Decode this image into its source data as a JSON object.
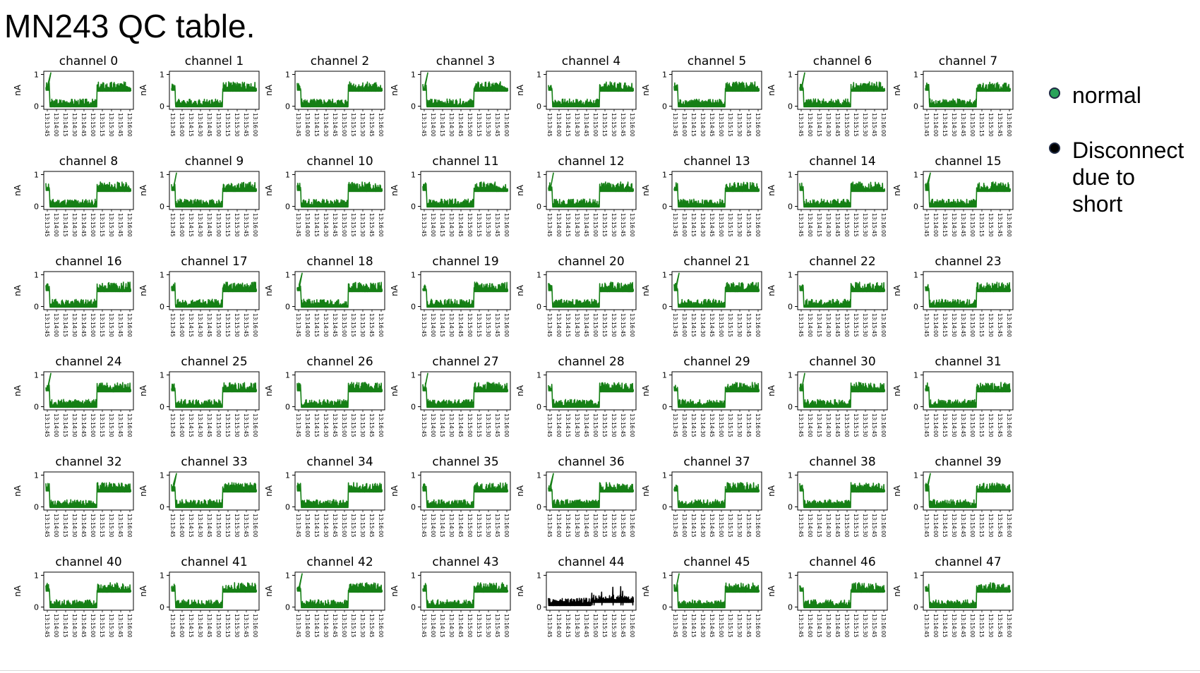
{
  "title": "MN243 QC table.",
  "legend": [
    {
      "label": "normal",
      "color": "#2aa35a"
    },
    {
      "label": "Disconnect due to short",
      "color": "#000000"
    }
  ],
  "colors": {
    "normal": "#157f15",
    "short": "#000000"
  },
  "chart_data": {
    "type": "line",
    "panel_count": 48,
    "panel_titles": [
      "channel 0",
      "channel 1",
      "channel 2",
      "channel 3",
      "channel 4",
      "channel 5",
      "channel 6",
      "channel 7",
      "channel 8",
      "channel 9",
      "channel 10",
      "channel 11",
      "channel 12",
      "channel 13",
      "channel 14",
      "channel 15",
      "channel 16",
      "channel 17",
      "channel 18",
      "channel 19",
      "channel 20",
      "channel 21",
      "channel 22",
      "channel 23",
      "channel 24",
      "channel 25",
      "channel 26",
      "channel 27",
      "channel 28",
      "channel 29",
      "channel 30",
      "channel 31",
      "channel 32",
      "channel 33",
      "channel 34",
      "channel 35",
      "channel 36",
      "channel 37",
      "channel 38",
      "channel 39",
      "channel 40",
      "channel 41",
      "channel 42",
      "channel 43",
      "channel 44",
      "channel 45",
      "channel 46",
      "channel 47"
    ],
    "ylabel": "nA",
    "yticks": [
      "0",
      "1"
    ],
    "ylim": [
      -0.1,
      1.1
    ],
    "xticks": [
      "13:13:45",
      "13:14:00",
      "13:14:15",
      "13:14:30",
      "13:14:45",
      "13:15:00",
      "13:15:15",
      "13:15:30",
      "13:15:45",
      "13:16:00"
    ],
    "status": [
      "normal",
      "normal",
      "normal",
      "normal",
      "normal",
      "normal",
      "normal",
      "normal",
      "normal",
      "normal",
      "normal",
      "normal",
      "normal",
      "normal",
      "normal",
      "normal",
      "normal",
      "normal",
      "normal",
      "normal",
      "normal",
      "normal",
      "normal",
      "normal",
      "normal",
      "normal",
      "normal",
      "normal",
      "normal",
      "normal",
      "normal",
      "normal",
      "normal",
      "normal",
      "normal",
      "normal",
      "normal",
      "normal",
      "normal",
      "normal",
      "normal",
      "normal",
      "normal",
      "normal",
      "short",
      "normal",
      "normal",
      "normal"
    ],
    "typical_profile_normal": {
      "x": [
        "13:13:45",
        "13:13:50",
        "13:14:00",
        "13:14:30",
        "13:15:00",
        "13:15:10",
        "13:15:30",
        "13:16:00"
      ],
      "y": [
        0.7,
        0.05,
        0.15,
        0.1,
        0.2,
        0.6,
        0.7,
        0.7
      ]
    },
    "typical_profile_short": {
      "x": [
        "13:13:45",
        "13:14:30",
        "13:15:00",
        "13:15:30",
        "13:16:00"
      ],
      "y": [
        0.15,
        0.15,
        0.3,
        0.35,
        0.3
      ]
    },
    "grid": false
  }
}
